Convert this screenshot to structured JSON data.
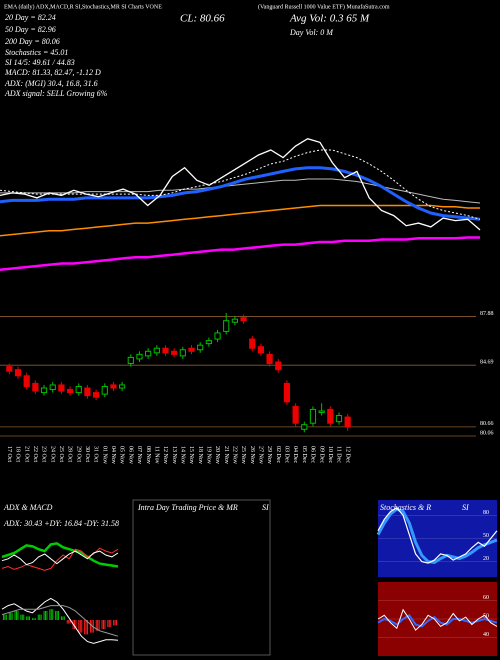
{
  "chart_data": [
    {
      "type": "line",
      "title": "(Vanguard Russell 1000 Value ETF) MunafaSutra.com",
      "subtitle": "EMA (daily) ADX,MACD,R SI,Stochastics,MR SI Charts VONE",
      "annotations": [
        "20 Day = 82.24",
        "50 Day = 82.96",
        "200 Day = 80.06",
        "Stochastics = 45.01",
        "SI 14/5: 49.61 / 44.83",
        "MACD: 81.33, 82.47, -1.12 D",
        "ADX: (MGI) 30.4, 16.8, 31.6",
        "ADX signal: SELL Growing 6%"
      ],
      "close_label": "CL: 80.66",
      "avg_vol": "Avg Vol: 0.3 65 M",
      "day_vol": "Day Vol: 0 M",
      "ylim": [
        75.5,
        98.5
      ],
      "series": [
        {
          "color": "#ff00ff",
          "width": 2.5,
          "values": [
            77.5,
            77.6,
            77.7,
            77.8,
            77.9,
            78.0,
            78.0,
            78.1,
            78.2,
            78.3,
            78.4,
            78.5,
            78.5,
            78.6,
            78.7,
            78.8,
            78.9,
            79.0,
            79.1,
            79.1,
            79.2,
            79.3,
            79.4,
            79.5,
            79.5,
            79.6,
            79.7,
            79.7,
            79.8,
            79.8,
            79.8,
            79.9,
            79.9,
            79.9,
            80.0,
            80.0,
            80.0,
            80.0,
            80.06,
            80.06
          ]
        },
        {
          "color": "#ff8c00",
          "width": 1.5,
          "values": [
            80.2,
            80.3,
            80.4,
            80.5,
            80.6,
            80.6,
            80.7,
            80.8,
            80.9,
            81.0,
            81.1,
            81.2,
            81.2,
            81.3,
            81.4,
            81.5,
            81.6,
            81.7,
            81.8,
            81.9,
            82.0,
            82.1,
            82.2,
            82.3,
            82.4,
            82.5,
            82.6,
            82.6,
            82.6,
            82.6,
            82.6,
            82.6,
            82.6,
            82.6,
            82.6,
            82.6,
            82.5,
            82.5,
            82.4,
            82.4
          ]
        },
        {
          "color": "#bbbbbb",
          "width": 1,
          "values": [
            83.6,
            83.6,
            83.6,
            83.6,
            83.6,
            83.6,
            83.6,
            83.7,
            83.7,
            83.7,
            83.7,
            83.7,
            83.7,
            83.8,
            83.8,
            83.9,
            83.9,
            84.0,
            84.1,
            84.2,
            84.3,
            84.4,
            84.5,
            84.6,
            84.6,
            84.7,
            84.7,
            84.7,
            84.6,
            84.5,
            84.3,
            84.1,
            83.9,
            83.7,
            83.5,
            83.3,
            83.1,
            83.0,
            82.9,
            82.8
          ]
        },
        {
          "color": "#2060ff",
          "width": 3,
          "values": [
            82.9,
            83.0,
            83.0,
            83.0,
            83.1,
            83.1,
            83.1,
            83.2,
            83.2,
            83.2,
            83.2,
            83.2,
            83.2,
            83.3,
            83.4,
            83.6,
            83.7,
            83.9,
            84.1,
            84.4,
            84.7,
            84.9,
            85.1,
            85.3,
            85.5,
            85.6,
            85.6,
            85.5,
            85.3,
            85.0,
            84.6,
            84.1,
            83.5,
            82.9,
            82.4,
            82.0,
            81.8,
            81.7,
            81.6,
            81.5
          ]
        },
        {
          "color": "#ffffff",
          "width": 1,
          "dashed": true,
          "values": [
            83.8,
            83.7,
            83.6,
            83.5,
            83.5,
            83.5,
            83.5,
            83.5,
            83.5,
            83.5,
            83.5,
            83.5,
            83.4,
            83.4,
            83.6,
            83.9,
            84.1,
            84.3,
            84.5,
            84.8,
            85.1,
            85.5,
            85.9,
            86.1,
            86.5,
            86.8,
            87.0,
            87.0,
            86.7,
            86.4,
            85.9,
            85.3,
            84.6,
            83.8,
            83.1,
            82.5,
            82.2,
            82.0,
            81.8,
            81.5
          ]
        },
        {
          "color": "#ffffff",
          "width": 1.3,
          "values": [
            83.4,
            83.6,
            83.5,
            83.2,
            83.6,
            83.4,
            83.8,
            83.5,
            83.3,
            83.6,
            83.9,
            83.5,
            82.6,
            83.4,
            84.9,
            85.6,
            84.6,
            84.2,
            84.8,
            85.4,
            86.0,
            86.6,
            87.0,
            86.4,
            87.3,
            87.9,
            87.6,
            86.0,
            84.8,
            85.3,
            83.2,
            82.2,
            81.8,
            81.0,
            81.2,
            80.9,
            81.6,
            81.4,
            81.5,
            80.66
          ]
        }
      ]
    },
    {
      "type": "candlestick",
      "categories": [
        "17 Oct",
        "18 Oct",
        "21 Oct",
        "22 Oct",
        "23 Oct",
        "24 Oct",
        "25 Oct",
        "28 Oct",
        "29 Oct",
        "30 Oct",
        "31 Oct",
        "01 Nov",
        "04 Nov",
        "05 Nov",
        "06 Nov",
        "07 Nov",
        "08 Nov",
        "11 Nov",
        "12 Nov",
        "13 Nov",
        "14 Nov",
        "15 Nov",
        "18 Nov",
        "19 Nov",
        "20 Nov",
        "21 Nov",
        "22 Nov",
        "25 Nov",
        "26 Nov",
        "27 Nov",
        "29 Nov",
        "02 Dec",
        "03 Dec",
        "04 Dec",
        "05 Dec",
        "06 Dec",
        "09 Dec",
        "10 Dec",
        "11 Dec",
        "12 Dec"
      ],
      "open": [
        84.6,
        84.4,
        84.0,
        83.5,
        82.9,
        83.1,
        83.4,
        83.1,
        82.9,
        83.2,
        82.9,
        82.8,
        83.4,
        83.2,
        84.8,
        85.1,
        85.3,
        85.5,
        85.8,
        85.6,
        85.3,
        85.8,
        85.7,
        86.1,
        86.4,
        86.9,
        87.5,
        87.8,
        86.4,
        85.9,
        85.4,
        84.9,
        83.5,
        82.0,
        80.5,
        80.9,
        81.6,
        81.8,
        81.0,
        81.3
      ],
      "high": [
        84.8,
        84.6,
        84.2,
        83.7,
        83.4,
        83.6,
        83.6,
        83.3,
        83.5,
        83.4,
        83.1,
        83.5,
        83.6,
        83.6,
        85.4,
        85.6,
        85.8,
        86.0,
        86.0,
        85.8,
        85.9,
        86.0,
        86.2,
        86.5,
        87.0,
        88.1,
        87.9,
        88.0,
        86.6,
        86.1,
        85.6,
        85.1,
        83.7,
        82.2,
        81.0,
        82.0,
        82.2,
        82.0,
        81.6,
        81.5
      ],
      "low": [
        84.1,
        83.8,
        83.1,
        82.8,
        82.7,
        82.9,
        82.8,
        82.7,
        82.7,
        82.5,
        82.4,
        82.6,
        83.0,
        83.0,
        84.6,
        84.9,
        85.1,
        85.3,
        85.3,
        85.2,
        85.1,
        85.4,
        85.5,
        85.9,
        86.2,
        86.7,
        87.3,
        87.4,
        85.6,
        85.3,
        84.6,
        84.2,
        82.1,
        80.7,
        80.3,
        80.7,
        81.4,
        80.7,
        80.8,
        80.4
      ],
      "close": [
        84.3,
        84.0,
        83.3,
        83.0,
        83.2,
        83.4,
        83.0,
        82.9,
        83.3,
        82.7,
        82.6,
        83.3,
        83.2,
        83.4,
        85.2,
        85.4,
        85.6,
        85.8,
        85.5,
        85.4,
        85.7,
        85.6,
        86.0,
        86.3,
        86.8,
        87.6,
        87.7,
        87.6,
        85.8,
        85.5,
        84.8,
        84.4,
        82.3,
        80.9,
        80.8,
        81.8,
        81.7,
        80.9,
        81.4,
        80.66
      ],
      "up_color": "#00c000",
      "down_color": "#ee0000",
      "line_color": "#8b5a2b",
      "ylim": [
        79.8,
        88.3
      ],
      "yticks": [
        87.88,
        84.69,
        80.66,
        80.06
      ]
    },
    {
      "type": "line",
      "title": "ADX  & MACD",
      "subtitle": "ADX: 30.43  +DY: 16.84  -DY: 31.58",
      "ylim": [
        0,
        50
      ],
      "series": [
        {
          "color": "#00cc00",
          "width": 2.5,
          "values": [
            22,
            24,
            26,
            30,
            34,
            33,
            30,
            28,
            35,
            36,
            32,
            30,
            28,
            26,
            22,
            18,
            15,
            14,
            13,
            12
          ]
        },
        {
          "color": "#ff3030",
          "width": 1,
          "values": [
            10,
            12,
            9,
            11,
            14,
            12,
            10,
            8,
            10,
            18,
            24,
            20,
            30,
            28,
            22,
            25,
            31,
            28,
            26,
            30
          ]
        },
        {
          "color": "#ffffff",
          "width": 1,
          "values": [
            18,
            20,
            24,
            20,
            14,
            16,
            22,
            25,
            20,
            15,
            20,
            25,
            28,
            24,
            20,
            26,
            28,
            24,
            22,
            26
          ]
        }
      ]
    },
    {
      "type": "bar",
      "ylim": [
        -2,
        2
      ],
      "up_color": "#00c000",
      "down_color": "#ff2020",
      "values": [
        0.3,
        0.4,
        0.5,
        0.3,
        0.2,
        0.1,
        0.3,
        0.5,
        0.6,
        0.5,
        0.2,
        -0.2,
        -0.5,
        -0.7,
        -0.8,
        -0.7,
        -0.6,
        -0.5,
        -0.4,
        -0.3
      ],
      "series": [
        {
          "color": "#ffffff",
          "width": 1,
          "values": [
            0.6,
            0.8,
            0.9,
            0.7,
            0.5,
            0.4,
            0.7,
            1.0,
            1.2,
            1.0,
            0.6,
            0.1,
            -0.4,
            -0.9,
            -1.2,
            -1.3,
            -1.2,
            -1.1,
            -1.1,
            -1.12
          ]
        },
        {
          "color": "#999999",
          "width": 1,
          "values": [
            0.3,
            0.4,
            0.5,
            0.6,
            0.6,
            0.6,
            0.6,
            0.7,
            0.8,
            0.8,
            0.8,
            0.7,
            0.5,
            0.2,
            -0.1,
            -0.4,
            -0.6,
            -0.7,
            -0.8,
            -0.9
          ]
        }
      ]
    },
    {
      "type": "blank",
      "title": "Intra Day Trading Price  & MR",
      "side_title": "SI",
      "color": "#555555"
    },
    {
      "type": "line",
      "title": "Stochastics  & R",
      "side_title": "SI",
      "background": "#1018a8",
      "ylim": [
        0,
        100
      ],
      "yticks": [
        80,
        50,
        20
      ],
      "series": [
        {
          "color": "#3399ff",
          "width": 3,
          "values": [
            55,
            70,
            82,
            88,
            85,
            70,
            45,
            28,
            20,
            19,
            24,
            28,
            26,
            24,
            27,
            32,
            38,
            42,
            45,
            48
          ]
        },
        {
          "color": "#ffffff",
          "width": 1.2,
          "values": [
            60,
            75,
            85,
            90,
            80,
            55,
            30,
            20,
            18,
            22,
            30,
            28,
            22,
            26,
            30,
            38,
            45,
            40,
            50,
            60
          ]
        }
      ]
    },
    {
      "type": "line",
      "background": "#8b0000",
      "ylim": [
        30,
        70
      ],
      "yticks": [
        60,
        50,
        40
      ],
      "series": [
        {
          "color": "#3366ff",
          "width": 2,
          "values": [
            48,
            50,
            49,
            47,
            50,
            52,
            47,
            46,
            49,
            51,
            48,
            47,
            50,
            50,
            49,
            48,
            49,
            50,
            49,
            48
          ]
        },
        {
          "color": "#ffffff",
          "width": 1,
          "values": [
            50,
            52,
            48,
            45,
            55,
            50,
            44,
            47,
            52,
            50,
            46,
            48,
            53,
            49,
            51,
            47,
            50,
            52,
            48,
            46
          ]
        }
      ]
    }
  ]
}
